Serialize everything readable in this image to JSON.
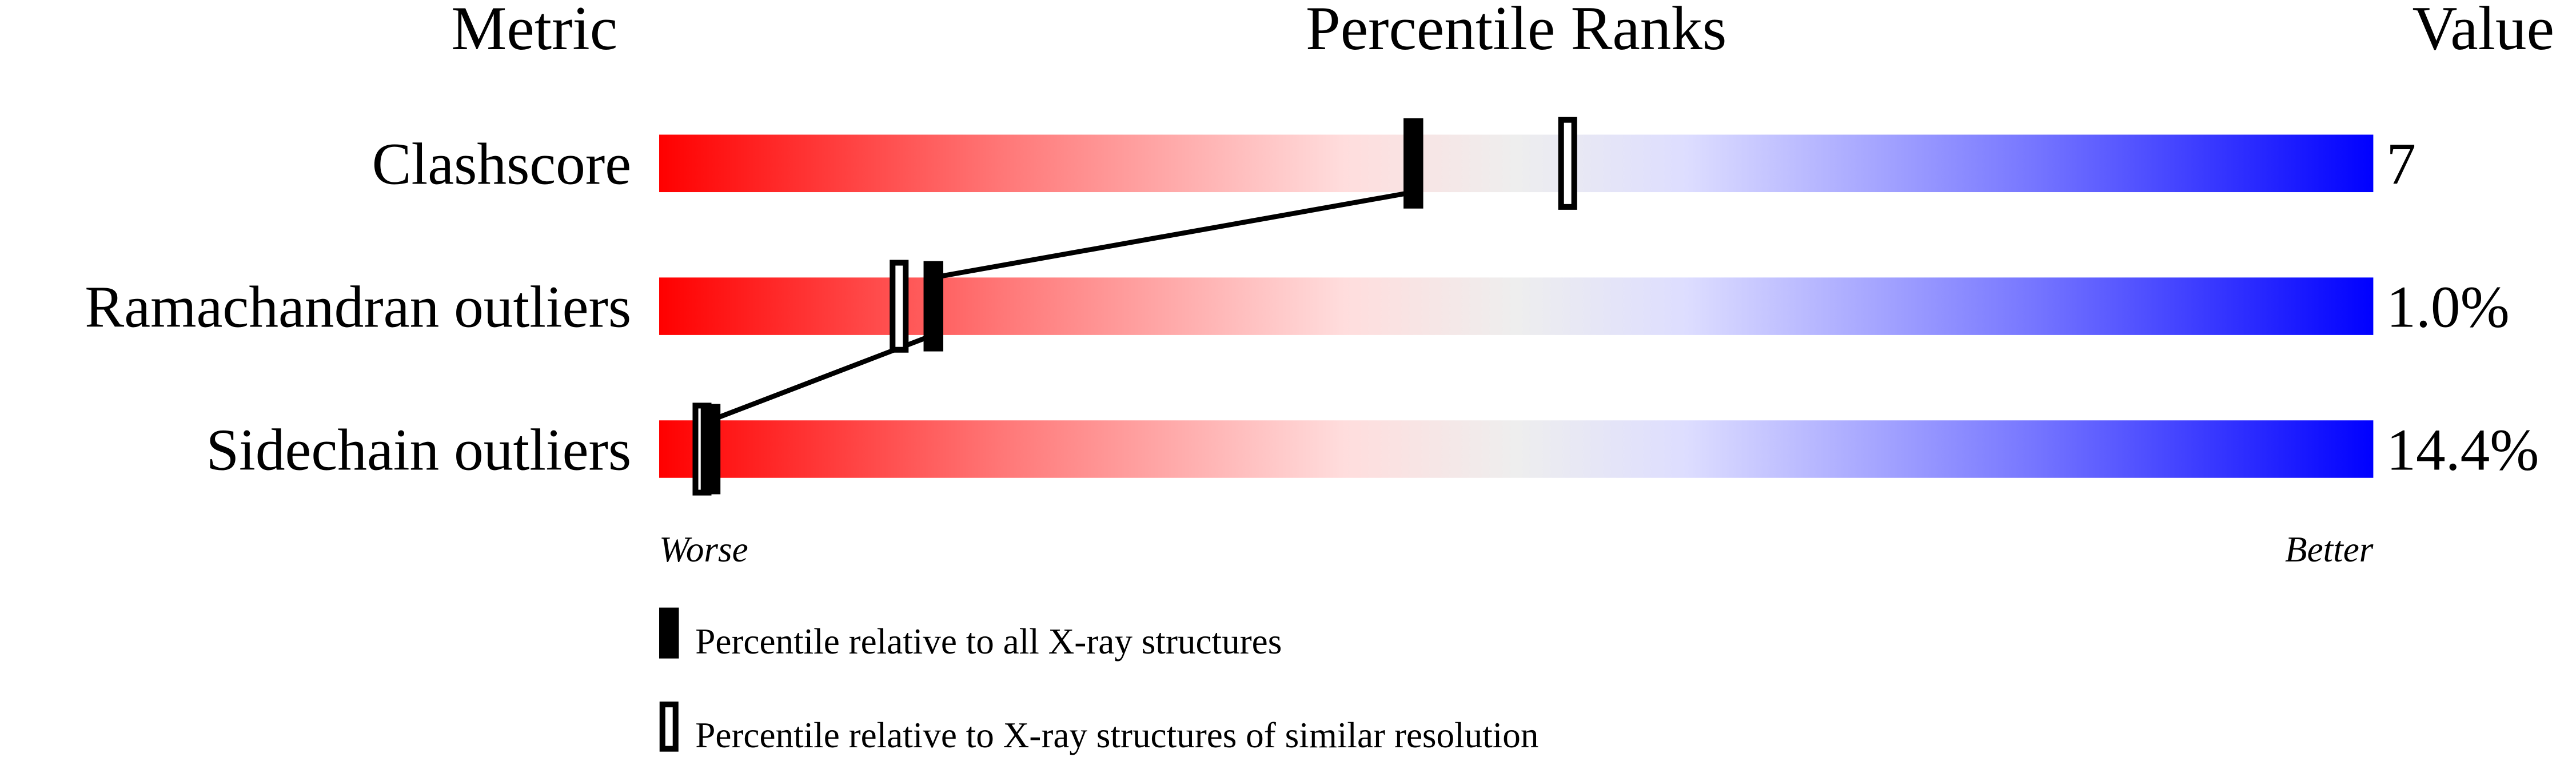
{
  "chart_data": {
    "type": "bar",
    "title": "Percentile Ranks",
    "column_headers": {
      "metric": "Metric",
      "ranks": "Percentile Ranks",
      "value": "Value"
    },
    "xlim": [
      0,
      100
    ],
    "axis_labels": {
      "left": "Worse",
      "right": "Better"
    },
    "rows": [
      {
        "metric": "Clashscore",
        "value": "7",
        "percentile_all": 44,
        "percentile_similar": 53
      },
      {
        "metric": "Ramachandran outliers",
        "value": "1.0%",
        "percentile_all": 16,
        "percentile_similar": 14
      },
      {
        "metric": "Sidechain outliers",
        "value": "14.4%",
        "percentile_all": 3,
        "percentile_similar": 2.5
      }
    ],
    "legend": [
      {
        "marker": "filled",
        "label": "Percentile relative to all X-ray structures"
      },
      {
        "marker": "open",
        "label": "Percentile relative to X-ray structures of similar resolution"
      }
    ],
    "colors": {
      "worse": "#ff0000",
      "middle": "#eeeeee",
      "better": "#0000ff",
      "marker": "#000000"
    }
  }
}
